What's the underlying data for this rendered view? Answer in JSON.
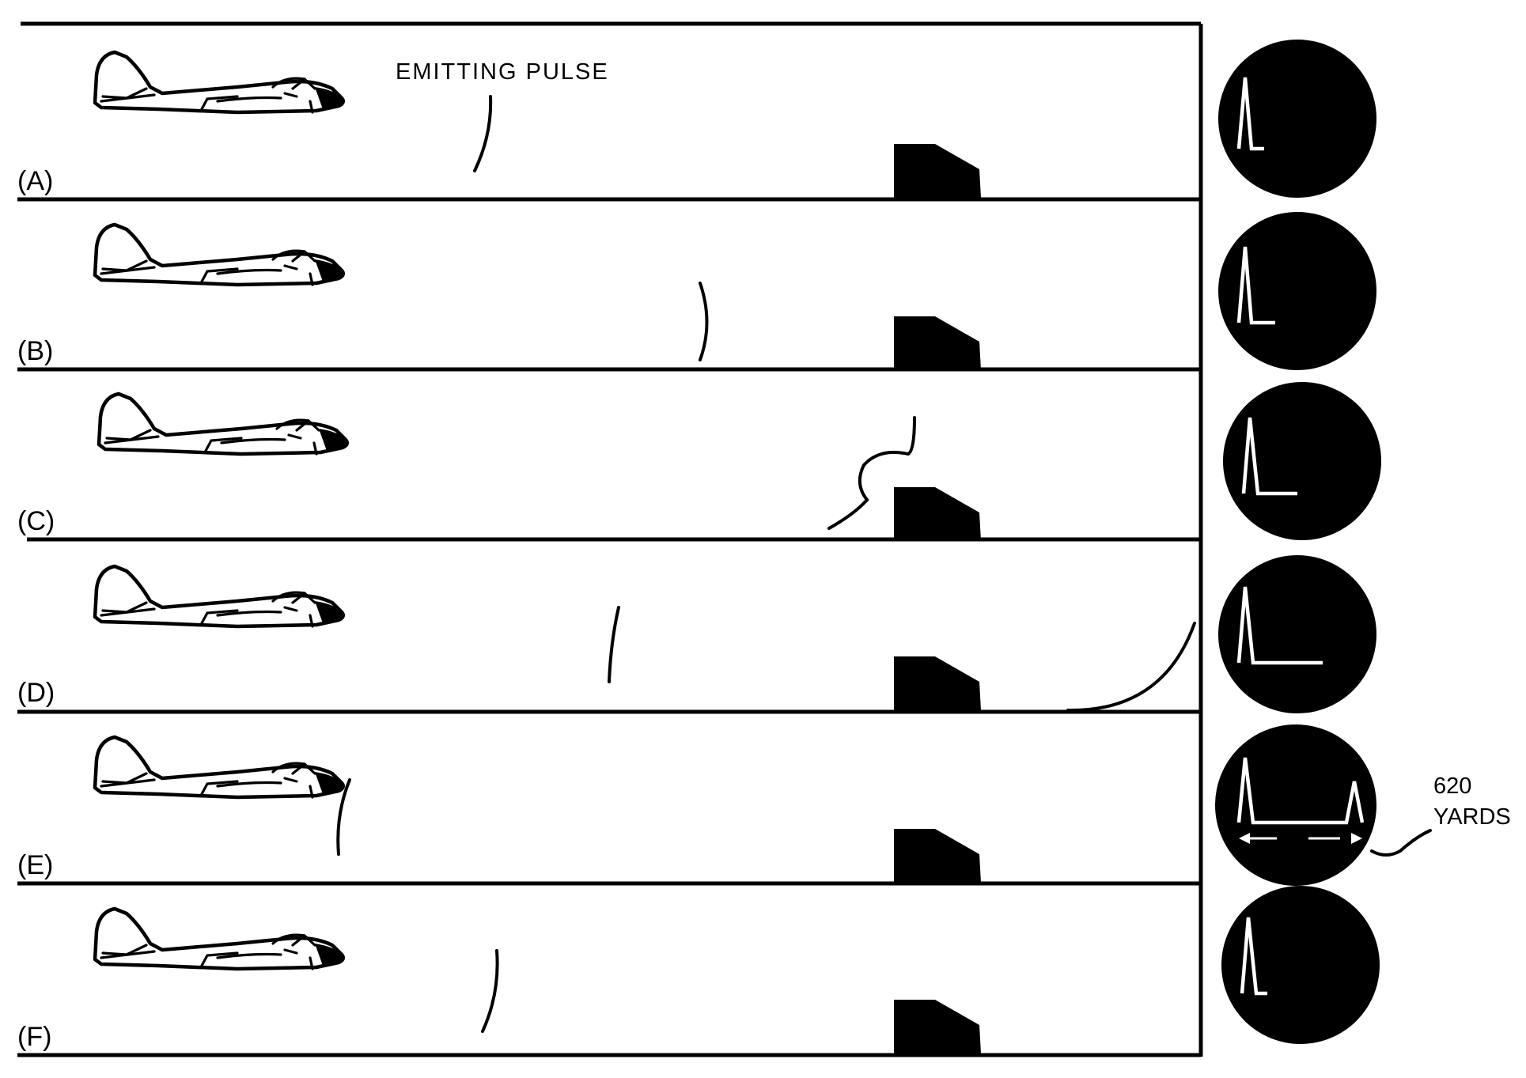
{
  "labels": {
    "emitting_pulse": "EMITTING PULSE",
    "range_value": "620",
    "range_unit": "YARDS"
  },
  "panels": [
    {
      "label": "(A)",
      "stage": "pulse-emitted"
    },
    {
      "label": "(B)",
      "stage": "pulse-traveling-out"
    },
    {
      "label": "(C)",
      "stage": "pulse-hits-target"
    },
    {
      "label": "(D)",
      "stage": "echo-returning"
    },
    {
      "label": "(E)",
      "stage": "echo-received"
    },
    {
      "label": "(F)",
      "stage": "next-pulse-emitted"
    }
  ],
  "colors": {
    "ink": "#000000",
    "paper": "#ffffff",
    "scope_trace": "#ffffff"
  },
  "icons": {
    "aircraft": "aircraft-icon",
    "target": "ship-target-icon",
    "scope": "oscilloscope-screen-icon"
  }
}
